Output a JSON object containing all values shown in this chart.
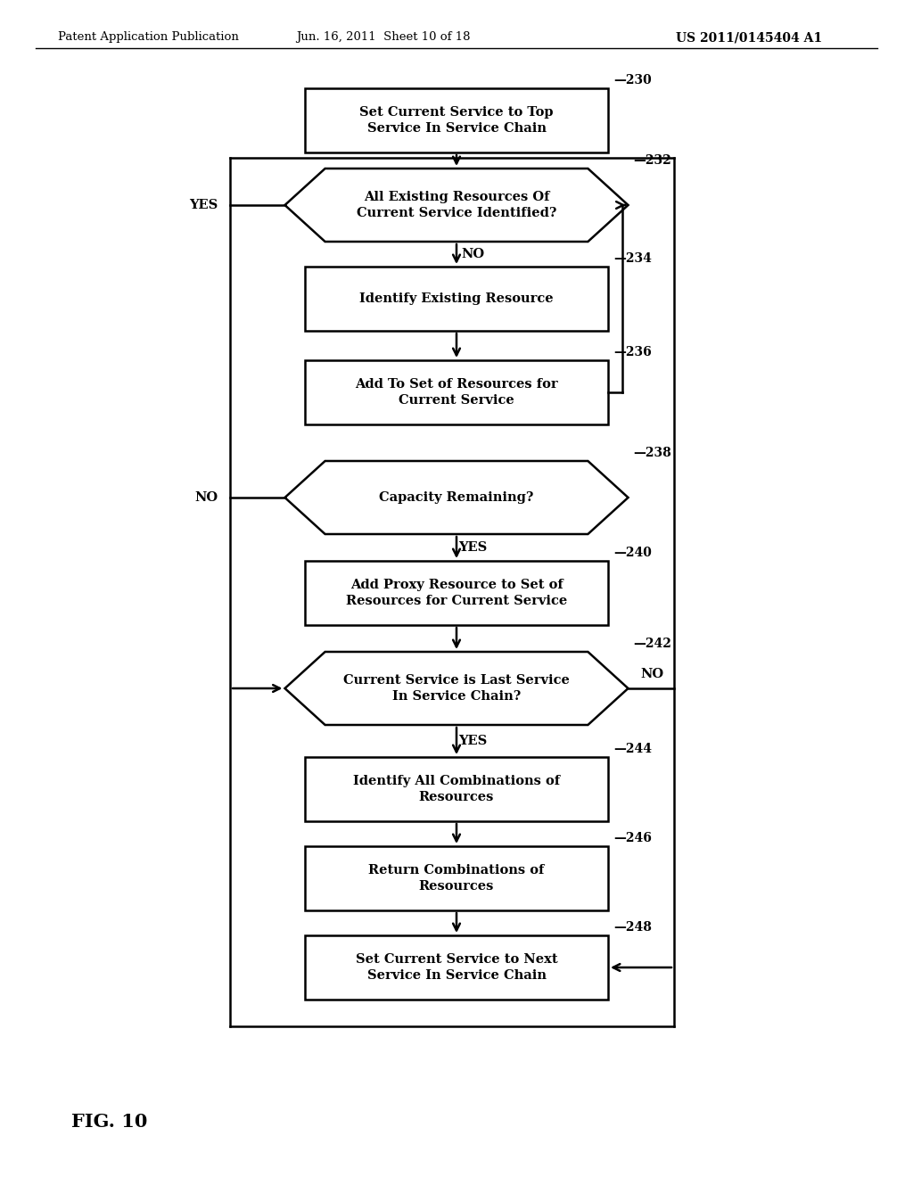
{
  "header_left": "Patent Application Publication",
  "header_mid": "Jun. 16, 2011  Sheet 10 of 18",
  "header_right": "US 2011/0145404 A1",
  "fig_label": "FIG. 10",
  "nodes": {
    "230": {
      "type": "rect",
      "label": [
        "Set Current Service to Top",
        "Service In Service Chain"
      ],
      "tag": "230"
    },
    "232": {
      "type": "hex",
      "label": [
        "All Existing Resources Of",
        "Current Service Identified?"
      ],
      "tag": "232"
    },
    "234": {
      "type": "rect",
      "label": [
        "Identify Existing Resource"
      ],
      "tag": "234"
    },
    "236": {
      "type": "rect",
      "label": [
        "Add To Set of Resources for",
        "Current Service"
      ],
      "tag": "236"
    },
    "238": {
      "type": "hex",
      "label": [
        "Capacity Remaining?"
      ],
      "tag": "238"
    },
    "240": {
      "type": "rect",
      "label": [
        "Add Proxy Resource to Set of",
        "Resources for Current Service"
      ],
      "tag": "240"
    },
    "242": {
      "type": "hex",
      "label": [
        "Current Service is Last Service",
        "In Service Chain?"
      ],
      "tag": "242"
    },
    "244": {
      "type": "rect",
      "label": [
        "Identify All Combinations of",
        "Resources"
      ],
      "tag": "244"
    },
    "246": {
      "type": "rect",
      "label": [
        "Return Combinations of",
        "Resources"
      ],
      "tag": "246"
    },
    "248": {
      "type": "rect",
      "label": [
        "Set Current Service to Next",
        "Service In Service Chain"
      ],
      "tag": "248"
    }
  }
}
